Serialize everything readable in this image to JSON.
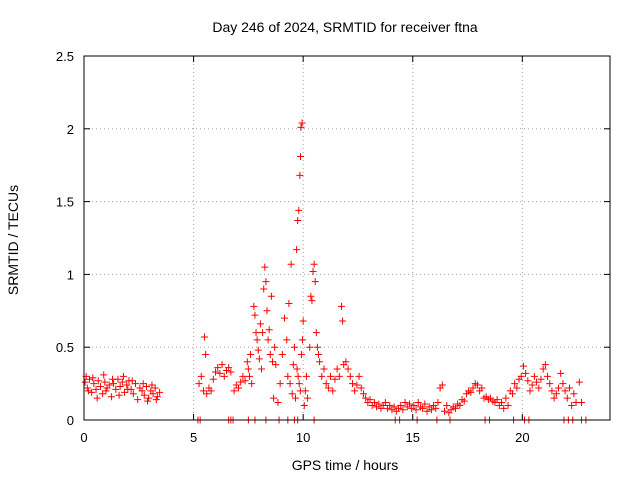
{
  "chart_data": {
    "type": "scatter",
    "title": "Day 246 of 2024, SRMTID for receiver ftna",
    "xlabel": "GPS time / hours",
    "ylabel": "SRMTID / TECUs",
    "xlim": [
      0,
      24
    ],
    "ylim": [
      0,
      2.5
    ],
    "xticks": [
      0,
      5,
      10,
      15,
      20
    ],
    "xtick_labels": [
      "0",
      "5",
      "10",
      "15",
      "20"
    ],
    "yticks": [
      0,
      0.5,
      1,
      1.5,
      2,
      2.5
    ],
    "ytick_labels": [
      "0",
      "0.5",
      "1",
      "1.5",
      "2",
      "2.5"
    ],
    "grid": true,
    "marker": "+",
    "color": "#ff0000",
    "series": [
      {
        "name": "SRMTID",
        "points": [
          [
            0.05,
            0.26
          ],
          [
            0.15,
            0.22
          ],
          [
            0.25,
            0.28
          ],
          [
            0.35,
            0.19
          ],
          [
            0.45,
            0.25
          ],
          [
            0.55,
            0.21
          ],
          [
            0.65,
            0.27
          ],
          [
            0.75,
            0.23
          ],
          [
            0.85,
            0.18
          ],
          [
            0.95,
            0.26
          ],
          [
            1.05,
            0.22
          ],
          [
            1.15,
            0.24
          ],
          [
            1.25,
            0.16
          ],
          [
            1.35,
            0.25
          ],
          [
            1.45,
            0.21
          ],
          [
            1.55,
            0.28
          ],
          [
            1.65,
            0.23
          ],
          [
            1.75,
            0.26
          ],
          [
            1.85,
            0.19
          ],
          [
            1.95,
            0.24
          ],
          [
            2.05,
            0.27
          ],
          [
            2.15,
            0.21
          ],
          [
            2.25,
            0.18
          ],
          [
            2.35,
            0.25
          ],
          [
            2.45,
            0.14
          ],
          [
            2.55,
            0.22
          ],
          [
            2.65,
            0.2
          ],
          [
            2.75,
            0.17
          ],
          [
            2.85,
            0.23
          ],
          [
            2.95,
            0.15
          ],
          [
            3.05,
            0.2
          ],
          [
            3.15,
            0.18
          ],
          [
            3.25,
            0.22
          ],
          [
            3.35,
            0.16
          ],
          [
            3.45,
            0.19
          ],
          [
            0.1,
            0.3
          ],
          [
            0.4,
            0.29
          ],
          [
            0.9,
            0.31
          ],
          [
            1.3,
            0.28
          ],
          [
            1.8,
            0.3
          ],
          [
            2.2,
            0.27
          ],
          [
            2.7,
            0.25
          ],
          [
            3.1,
            0.24
          ],
          [
            0.6,
            0.15
          ],
          [
            1.6,
            0.17
          ],
          [
            2.9,
            0.13
          ],
          [
            3.3,
            0.14
          ],
          [
            0.2,
            0.2
          ],
          [
            1.0,
            0.2
          ],
          [
            2.0,
            0.21
          ],
          [
            5.25,
            0.25
          ],
          [
            5.35,
            0.3
          ],
          [
            5.45,
            0.2
          ],
          [
            5.5,
            0.57
          ],
          [
            5.55,
            0.45
          ],
          [
            5.6,
            0.18
          ],
          [
            5.7,
            0.22
          ],
          [
            5.8,
            0.2
          ],
          [
            5.9,
            0.28
          ],
          [
            6.0,
            0.33
          ],
          [
            6.1,
            0.36
          ],
          [
            6.2,
            0.32
          ],
          [
            6.3,
            0.38
          ],
          [
            6.4,
            0.3
          ],
          [
            6.5,
            0.34
          ],
          [
            6.6,
            0.36
          ],
          [
            6.7,
            0.33
          ],
          [
            6.85,
            0.2
          ],
          [
            6.95,
            0.24
          ],
          [
            7.05,
            0.22
          ],
          [
            7.15,
            0.26
          ],
          [
            7.25,
            0.3
          ],
          [
            7.35,
            0.27
          ],
          [
            7.45,
            0.4
          ],
          [
            7.5,
            0.35
          ],
          [
            7.55,
            0.3
          ],
          [
            7.6,
            0.45
          ],
          [
            7.65,
            0.25
          ],
          [
            7.75,
            0.78
          ],
          [
            7.8,
            0.72
          ],
          [
            7.85,
            0.6
          ],
          [
            7.9,
            0.55
          ],
          [
            7.95,
            0.48
          ],
          [
            8.0,
            0.42
          ],
          [
            8.05,
            0.66
          ],
          [
            8.1,
            0.35
          ],
          [
            8.15,
            0.6
          ],
          [
            8.2,
            0.9
          ],
          [
            8.25,
            1.05
          ],
          [
            8.3,
            0.95
          ],
          [
            8.35,
            0.75
          ],
          [
            8.4,
            0.55
          ],
          [
            8.45,
            0.62
          ],
          [
            8.5,
            0.45
          ],
          [
            8.55,
            0.85
          ],
          [
            8.6,
            0.4
          ],
          [
            8.65,
            0.15
          ],
          [
            8.7,
            0.5
          ],
          [
            8.75,
            0.38
          ],
          [
            8.85,
            0.12
          ],
          [
            8.95,
            0.25
          ],
          [
            9.05,
            0.45
          ],
          [
            9.15,
            0.7
          ],
          [
            9.25,
            0.55
          ],
          [
            9.3,
            0.3
          ],
          [
            9.35,
            0.8
          ],
          [
            9.4,
            0.25
          ],
          [
            9.45,
            1.07
          ],
          [
            9.5,
            0.18
          ],
          [
            9.55,
            0.38
          ],
          [
            9.6,
            0.5
          ],
          [
            9.65,
            0.15
          ],
          [
            9.7,
            1.17
          ],
          [
            9.72,
            0.35
          ],
          [
            9.75,
            1.37
          ],
          [
            9.77,
            0.3
          ],
          [
            9.8,
            1.44
          ],
          [
            9.82,
            0.25
          ],
          [
            9.85,
            1.68
          ],
          [
            9.87,
            0.2
          ],
          [
            9.88,
            1.81
          ],
          [
            9.9,
            2.01
          ],
          [
            9.92,
            0.45
          ],
          [
            9.95,
            2.04
          ],
          [
            9.97,
            0.55
          ],
          [
            10.0,
            0.68
          ],
          [
            10.05,
            0.1
          ],
          [
            10.1,
            0.2
          ],
          [
            10.15,
            0.3
          ],
          [
            10.2,
            0.15
          ],
          [
            10.3,
            0.5
          ],
          [
            10.35,
            0.85
          ],
          [
            10.4,
            0.82
          ],
          [
            10.45,
            1.02
          ],
          [
            10.5,
            1.07
          ],
          [
            10.55,
            0.95
          ],
          [
            10.6,
            0.6
          ],
          [
            10.65,
            0.5
          ],
          [
            10.7,
            0.45
          ],
          [
            10.75,
            0.4
          ],
          [
            10.85,
            0.3
          ],
          [
            10.95,
            0.35
          ],
          [
            11.05,
            0.25
          ],
          [
            11.15,
            0.22
          ],
          [
            11.25,
            0.3
          ],
          [
            11.35,
            0.2
          ],
          [
            11.45,
            0.28
          ],
          [
            11.55,
            0.35
          ],
          [
            11.65,
            0.3
          ],
          [
            11.75,
            0.78
          ],
          [
            11.8,
            0.68
          ],
          [
            11.85,
            0.38
          ],
          [
            11.95,
            0.4
          ],
          [
            12.05,
            0.35
          ],
          [
            12.15,
            0.3
          ],
          [
            12.25,
            0.25
          ],
          [
            12.35,
            0.2
          ],
          [
            12.45,
            0.24
          ],
          [
            12.55,
            0.3
          ],
          [
            12.65,
            0.22
          ],
          [
            12.75,
            0.18
          ],
          [
            12.85,
            0.15
          ],
          [
            12.95,
            0.12
          ],
          [
            13.05,
            0.14
          ],
          [
            13.15,
            0.1
          ],
          [
            13.25,
            0.12
          ],
          [
            13.35,
            0.09
          ],
          [
            13.45,
            0.11
          ],
          [
            13.55,
            0.08
          ],
          [
            13.65,
            0.1
          ],
          [
            13.75,
            0.12
          ],
          [
            13.85,
            0.08
          ],
          [
            13.95,
            0.1
          ],
          [
            14.05,
            0.07
          ],
          [
            14.15,
            0.09
          ],
          [
            14.25,
            0.06
          ],
          [
            14.35,
            0.08
          ],
          [
            14.45,
            0.1
          ],
          [
            14.55,
            0.07
          ],
          [
            14.65,
            0.12
          ],
          [
            14.75,
            0.09
          ],
          [
            14.85,
            0.11
          ],
          [
            14.95,
            0.08
          ],
          [
            15.05,
            0.1
          ],
          [
            15.15,
            0.07
          ],
          [
            15.25,
            0.12
          ],
          [
            15.35,
            0.09
          ],
          [
            15.45,
            0.08
          ],
          [
            15.55,
            0.11
          ],
          [
            15.65,
            0.06
          ],
          [
            15.75,
            0.09
          ],
          [
            15.85,
            0.07
          ],
          [
            15.95,
            0.1
          ],
          [
            16.05,
            0.08
          ],
          [
            16.15,
            0.12
          ],
          [
            16.25,
            0.22
          ],
          [
            16.35,
            0.24
          ],
          [
            16.45,
            0.06
          ],
          [
            16.55,
            0.1
          ],
          [
            16.65,
            0.05
          ],
          [
            16.75,
            0.07
          ],
          [
            16.85,
            0.09
          ],
          [
            16.95,
            0.08
          ],
          [
            17.05,
            0.11
          ],
          [
            17.15,
            0.1
          ],
          [
            17.25,
            0.14
          ],
          [
            17.35,
            0.13
          ],
          [
            17.45,
            0.18
          ],
          [
            17.55,
            0.2
          ],
          [
            17.65,
            0.19
          ],
          [
            17.75,
            0.22
          ],
          [
            17.85,
            0.25
          ],
          [
            17.95,
            0.24
          ],
          [
            18.05,
            0.2
          ],
          [
            18.15,
            0.22
          ],
          [
            18.25,
            0.15
          ],
          [
            18.35,
            0.16
          ],
          [
            18.45,
            0.14
          ],
          [
            18.55,
            0.15
          ],
          [
            18.65,
            0.13
          ],
          [
            18.75,
            0.12
          ],
          [
            18.85,
            0.14
          ],
          [
            18.95,
            0.1
          ],
          [
            19.05,
            0.12
          ],
          [
            19.15,
            0.08
          ],
          [
            19.25,
            0.15
          ],
          [
            19.35,
            0.1
          ],
          [
            19.45,
            0.2
          ],
          [
            19.55,
            0.18
          ],
          [
            19.65,
            0.25
          ],
          [
            19.75,
            0.22
          ],
          [
            19.85,
            0.28
          ],
          [
            19.95,
            0.3
          ],
          [
            20.05,
            0.37
          ],
          [
            20.15,
            0.32
          ],
          [
            20.25,
            0.27
          ],
          [
            20.35,
            0.2
          ],
          [
            20.45,
            0.24
          ],
          [
            20.55,
            0.3
          ],
          [
            20.65,
            0.26
          ],
          [
            20.75,
            0.22
          ],
          [
            20.85,
            0.28
          ],
          [
            20.95,
            0.35
          ],
          [
            21.05,
            0.38
          ],
          [
            21.15,
            0.3
          ],
          [
            21.25,
            0.25
          ],
          [
            21.35,
            0.2
          ],
          [
            21.45,
            0.15
          ],
          [
            21.55,
            0.18
          ],
          [
            21.65,
            0.22
          ],
          [
            21.75,
            0.32
          ],
          [
            21.85,
            0.25
          ],
          [
            21.95,
            0.2
          ],
          [
            22.05,
            0.15
          ],
          [
            22.15,
            0.22
          ],
          [
            22.25,
            0.1
          ],
          [
            22.35,
            0.18
          ],
          [
            22.45,
            0.12
          ],
          [
            22.6,
            0.26
          ],
          [
            22.7,
            0.12
          ],
          [
            5.2,
            0.0
          ],
          [
            5.3,
            0.0
          ],
          [
            6.6,
            0.0
          ],
          [
            6.7,
            0.0
          ],
          [
            6.8,
            0.0
          ],
          [
            7.5,
            0.0
          ],
          [
            7.8,
            0.0
          ],
          [
            8.3,
            0.0
          ],
          [
            8.9,
            0.0
          ],
          [
            9.3,
            0.0
          ],
          [
            9.6,
            0.0
          ],
          [
            9.75,
            0.0
          ],
          [
            10.5,
            0.0
          ],
          [
            14.2,
            0.0
          ],
          [
            14.4,
            0.0
          ],
          [
            15.2,
            0.0
          ],
          [
            16.1,
            0.0
          ],
          [
            16.7,
            0.0
          ],
          [
            18.3,
            0.0
          ],
          [
            18.5,
            0.0
          ],
          [
            19.6,
            0.0
          ],
          [
            20.1,
            0.0
          ],
          [
            20.3,
            0.0
          ],
          [
            21.9,
            0.0
          ],
          [
            22.1,
            0.0
          ],
          [
            22.3,
            0.0
          ],
          [
            22.7,
            0.0
          ],
          [
            22.9,
            0.0
          ]
        ]
      }
    ]
  }
}
